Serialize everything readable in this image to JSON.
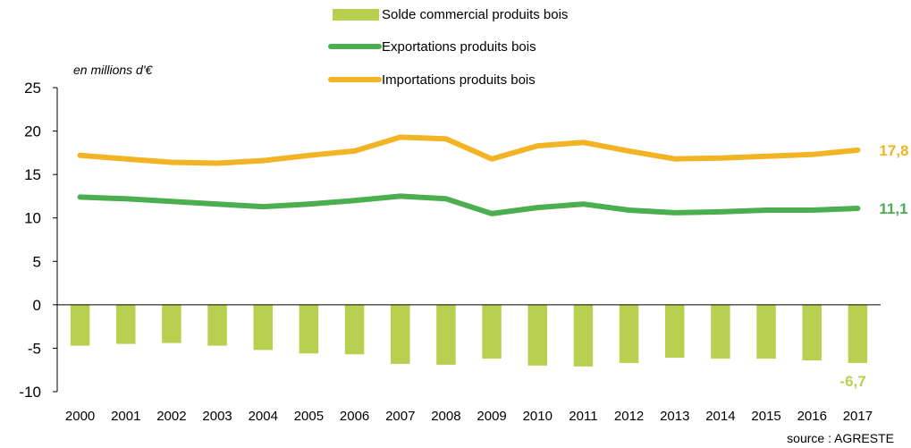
{
  "chart_data": {
    "type": "bar+line",
    "unit_label": "en millions d'€",
    "source": "source : AGRESTE",
    "ylim": [
      -10,
      25
    ],
    "yticks": [
      25,
      20,
      15,
      10,
      5,
      0,
      -5,
      -10
    ],
    "categories": [
      "2000",
      "2001",
      "2002",
      "2003",
      "2004",
      "2005",
      "2006",
      "2007",
      "2008",
      "2009",
      "2010",
      "2011",
      "2012",
      "2013",
      "2014",
      "2015",
      "2016",
      "2017"
    ],
    "series": [
      {
        "name": "Solde commercial produits bois",
        "kind": "bar",
        "color": "#b9cf4f",
        "values": [
          -4.7,
          -4.5,
          -4.4,
          -4.7,
          -5.2,
          -5.6,
          -5.7,
          -6.8,
          -6.9,
          -6.2,
          -7.0,
          -7.1,
          -6.7,
          -6.1,
          -6.2,
          -6.2,
          -6.4,
          -6.7
        ],
        "end_label": "-6,7"
      },
      {
        "name": "Exportations produits bois",
        "kind": "line",
        "color": "#4bae4f",
        "values": [
          12.4,
          12.2,
          11.9,
          11.6,
          11.3,
          11.6,
          12.0,
          12.5,
          12.2,
          10.5,
          11.2,
          11.6,
          10.9,
          10.6,
          10.7,
          10.9,
          10.9,
          11.1
        ],
        "end_label": "11,1"
      },
      {
        "name": "Importations produits bois",
        "kind": "line",
        "color": "#f2b324",
        "values": [
          17.2,
          16.8,
          16.4,
          16.3,
          16.6,
          17.2,
          17.7,
          19.3,
          19.1,
          16.8,
          18.3,
          18.7,
          17.7,
          16.8,
          16.9,
          17.1,
          17.3,
          17.8
        ],
        "end_label": "17,8"
      }
    ],
    "legend_position": "top-center",
    "grid": false
  }
}
